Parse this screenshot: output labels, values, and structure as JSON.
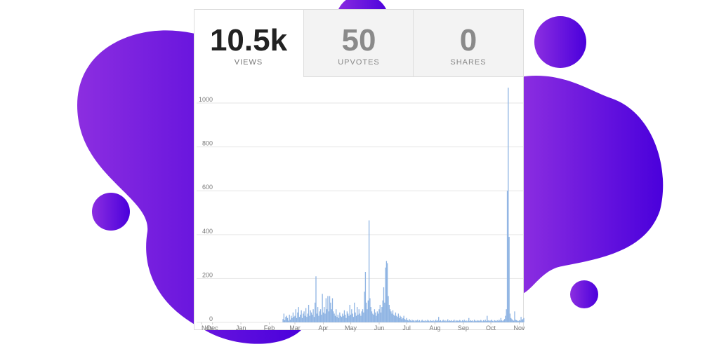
{
  "stats": [
    {
      "value": "10.5k",
      "label": "VIEWS"
    },
    {
      "value": "50",
      "label": "UPVOTES"
    },
    {
      "value": "0",
      "label": "SHARES"
    }
  ],
  "chart_data": {
    "type": "bar",
    "color": "#8fb4e3",
    "grid": true,
    "xlim": [
      0,
      352
    ],
    "xticks": [
      {
        "value": 0,
        "label": "Nov"
      },
      {
        "value": 12,
        "label": "Dec"
      },
      {
        "value": 43,
        "label": "Jan"
      },
      {
        "value": 74,
        "label": "Feb"
      },
      {
        "value": 102,
        "label": "Mar"
      },
      {
        "value": 133,
        "label": "Apr"
      },
      {
        "value": 163,
        "label": "May"
      },
      {
        "value": 194,
        "label": "Jun"
      },
      {
        "value": 224,
        "label": "Jul"
      },
      {
        "value": 255,
        "label": "Aug"
      },
      {
        "value": 286,
        "label": "Sep"
      },
      {
        "value": 316,
        "label": "Oct"
      },
      {
        "value": 347,
        "label": "Nov"
      }
    ],
    "ylim": [
      0,
      1080
    ],
    "yticks": [
      0,
      200,
      400,
      600,
      800,
      1000
    ],
    "values": [
      0,
      0,
      0,
      0,
      0,
      0,
      0,
      0,
      0,
      0,
      0,
      0,
      0,
      0,
      0,
      0,
      0,
      0,
      0,
      0,
      0,
      0,
      0,
      0,
      0,
      0,
      0,
      0,
      0,
      0,
      0,
      0,
      0,
      0,
      0,
      0,
      0,
      0,
      0,
      0,
      0,
      0,
      0,
      0,
      0,
      0,
      0,
      0,
      0,
      0,
      0,
      0,
      0,
      0,
      0,
      0,
      0,
      0,
      0,
      0,
      0,
      0,
      0,
      0,
      0,
      0,
      0,
      0,
      0,
      0,
      0,
      0,
      0,
      0,
      0,
      0,
      0,
      0,
      0,
      0,
      0,
      0,
      0,
      0,
      0,
      0,
      0,
      0,
      0,
      15,
      40,
      10,
      25,
      30,
      20,
      8,
      35,
      12,
      30,
      20,
      45,
      25,
      30,
      60,
      20,
      45,
      70,
      25,
      35,
      55,
      20,
      40,
      50,
      30,
      65,
      25,
      40,
      80,
      30,
      55,
      45,
      35,
      60,
      25,
      90,
      210,
      40,
      70,
      30,
      50,
      60,
      35,
      130,
      45,
      70,
      40,
      110,
      60,
      120,
      50,
      120,
      90,
      60,
      110,
      50,
      40,
      30,
      60,
      25,
      35,
      20,
      45,
      30,
      25,
      40,
      30,
      55,
      35,
      20,
      50,
      40,
      30,
      80,
      35,
      60,
      40,
      25,
      90,
      45,
      30,
      70,
      35,
      60,
      40,
      30,
      50,
      60,
      45,
      140,
      230,
      90,
      60,
      100,
      465,
      110,
      70,
      50,
      40,
      35,
      60,
      45,
      30,
      50,
      40,
      60,
      80,
      45,
      70,
      100,
      160,
      90,
      250,
      280,
      270,
      120,
      80,
      60,
      50,
      40,
      55,
      35,
      30,
      45,
      30,
      25,
      40,
      20,
      30,
      25,
      15,
      20,
      30,
      15,
      12,
      20,
      10,
      8,
      15,
      10,
      6,
      12,
      8,
      10,
      5,
      10,
      8,
      12,
      6,
      10,
      4,
      8,
      12,
      6,
      8,
      5,
      10,
      6,
      12,
      8,
      5,
      10,
      7,
      6,
      10,
      5,
      8,
      12,
      6,
      9,
      25,
      7,
      10,
      5,
      8,
      12,
      6,
      10,
      5,
      8,
      14,
      6,
      9,
      7,
      10,
      6,
      8,
      12,
      5,
      10,
      7,
      9,
      6,
      11,
      8,
      5,
      10,
      7,
      12,
      6,
      9,
      5,
      8,
      20,
      6,
      10,
      7,
      9,
      5,
      12,
      8,
      6,
      10,
      7,
      9,
      6,
      11,
      8,
      5,
      10,
      7,
      12,
      6,
      30,
      8,
      10,
      6,
      9,
      12,
      7,
      5,
      10,
      8,
      6,
      10,
      7,
      12,
      8,
      20,
      9,
      6,
      10,
      15,
      30,
      60,
      600,
      1070,
      390,
      40,
      20,
      15,
      10,
      8,
      50,
      12,
      10,
      8,
      6,
      10,
      8,
      25,
      12,
      15,
      20
    ]
  }
}
